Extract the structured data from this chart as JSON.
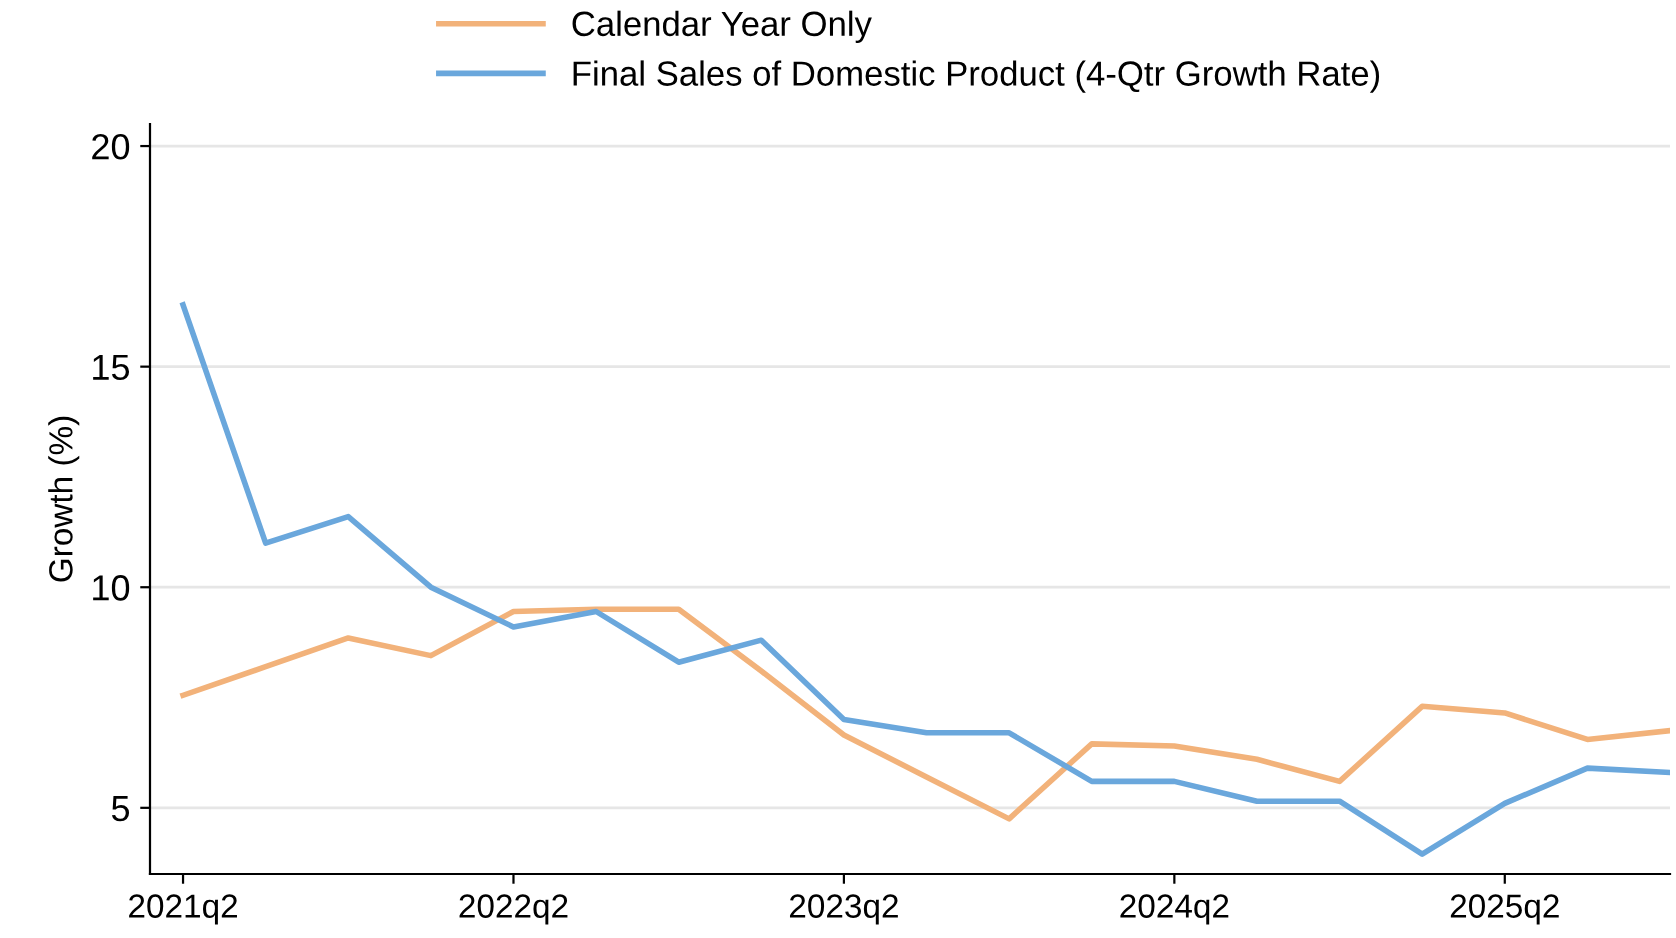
{
  "chart_data": {
    "type": "line",
    "ylabel": "Growth (%)",
    "categories": [
      "2021q2",
      null,
      null,
      null,
      "2022q2",
      null,
      null,
      null,
      "2023q2",
      null,
      null,
      null,
      "2024q2",
      null,
      null,
      null,
      "2025q2",
      null,
      null
    ],
    "series": [
      {
        "name": "Calendar Year Only",
        "color": "#f2b27a",
        "values": [
          7.55,
          8.2,
          8.85,
          8.45,
          9.45,
          9.5,
          9.5,
          8.1,
          6.65,
          5.7,
          4.75,
          6.45,
          6.4,
          6.1,
          5.6,
          7.3,
          7.15,
          6.55,
          6.75
        ]
      },
      {
        "name": "Final Sales of Domestic Product (4-Qtr Growth Rate)",
        "color": "#6aa7dc",
        "values": [
          16.4,
          11.0,
          11.6,
          10.0,
          9.1,
          9.45,
          8.3,
          8.8,
          7.0,
          6.7,
          6.7,
          5.6,
          5.6,
          5.15,
          5.15,
          3.95,
          5.1,
          5.9,
          5.8
        ]
      }
    ],
    "ylim": [
      3.5,
      20.5
    ],
    "yticks": [
      5,
      10,
      15,
      20
    ],
    "grid": "y",
    "legend": "top",
    "marker": "none",
    "line_style": "solid"
  }
}
